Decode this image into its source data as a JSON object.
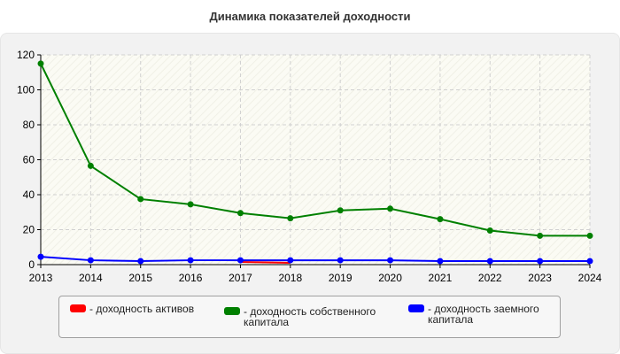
{
  "chart_data": {
    "type": "line",
    "title": "Динамика показателей доходности",
    "xlabel": "",
    "ylabel": "",
    "categories": [
      "2013",
      "2014",
      "2015",
      "2016",
      "2017",
      "2018",
      "2019",
      "2020",
      "2021",
      "2022",
      "2023",
      "2024"
    ],
    "ylim": [
      0,
      120
    ],
    "yticks": [
      0,
      20,
      40,
      60,
      80,
      100,
      120
    ],
    "grid": true,
    "legend_position": "bottom",
    "series": [
      {
        "name": "- доходность активов",
        "color": "#ff0000",
        "values": [
          null,
          null,
          null,
          null,
          1.5,
          1.0,
          null,
          null,
          null,
          null,
          null,
          null
        ]
      },
      {
        "name": "- доходность собственного капитала",
        "color": "#008000",
        "values": [
          115,
          56.5,
          37.5,
          34.5,
          29.5,
          26.5,
          31,
          32,
          26,
          19.5,
          16.5,
          16.5
        ]
      },
      {
        "name": "- доходность заемного капитала",
        "color": "#0000ff",
        "values": [
          4.5,
          2.5,
          2.0,
          2.5,
          2.5,
          2.5,
          2.5,
          2.5,
          2.0,
          2.0,
          2.0,
          2.0
        ]
      }
    ]
  }
}
